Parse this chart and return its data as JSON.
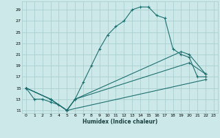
{
  "xlabel": "Humidex (Indice chaleur)",
  "bg_color": "#cce8e8",
  "grid_color": "#aacece",
  "line_color": "#1a6e6e",
  "xlim": [
    -0.5,
    23.5
  ],
  "ylim": [
    10.5,
    30.5
  ],
  "yticks": [
    11,
    13,
    15,
    17,
    19,
    21,
    23,
    25,
    27,
    29
  ],
  "xticks": [
    0,
    1,
    2,
    3,
    4,
    5,
    6,
    7,
    8,
    9,
    10,
    11,
    12,
    13,
    14,
    15,
    16,
    17,
    18,
    19,
    20,
    21,
    22,
    23
  ],
  "line1_x": [
    0,
    1,
    2,
    3,
    4,
    5,
    6,
    7,
    8,
    9,
    10,
    11,
    12,
    13,
    14,
    15,
    16,
    17,
    18,
    19,
    20,
    21,
    22
  ],
  "line1_y": [
    15,
    13,
    13,
    12.5,
    12,
    11,
    13,
    16,
    19,
    22,
    24.5,
    26,
    27,
    29,
    29.5,
    29.5,
    28,
    27.5,
    22,
    21,
    20.5,
    17,
    17
  ],
  "line2_x": [
    0,
    3,
    5,
    6,
    19,
    20,
    22
  ],
  "line2_y": [
    15,
    13,
    11,
    13,
    21.5,
    21,
    17.5
  ],
  "line3_x": [
    0,
    3,
    5,
    6,
    20,
    22
  ],
  "line3_y": [
    15,
    13,
    11,
    13,
    19.5,
    17.5
  ],
  "line4_x": [
    0,
    3,
    5,
    22
  ],
  "line4_y": [
    15,
    13,
    11,
    16.5
  ]
}
